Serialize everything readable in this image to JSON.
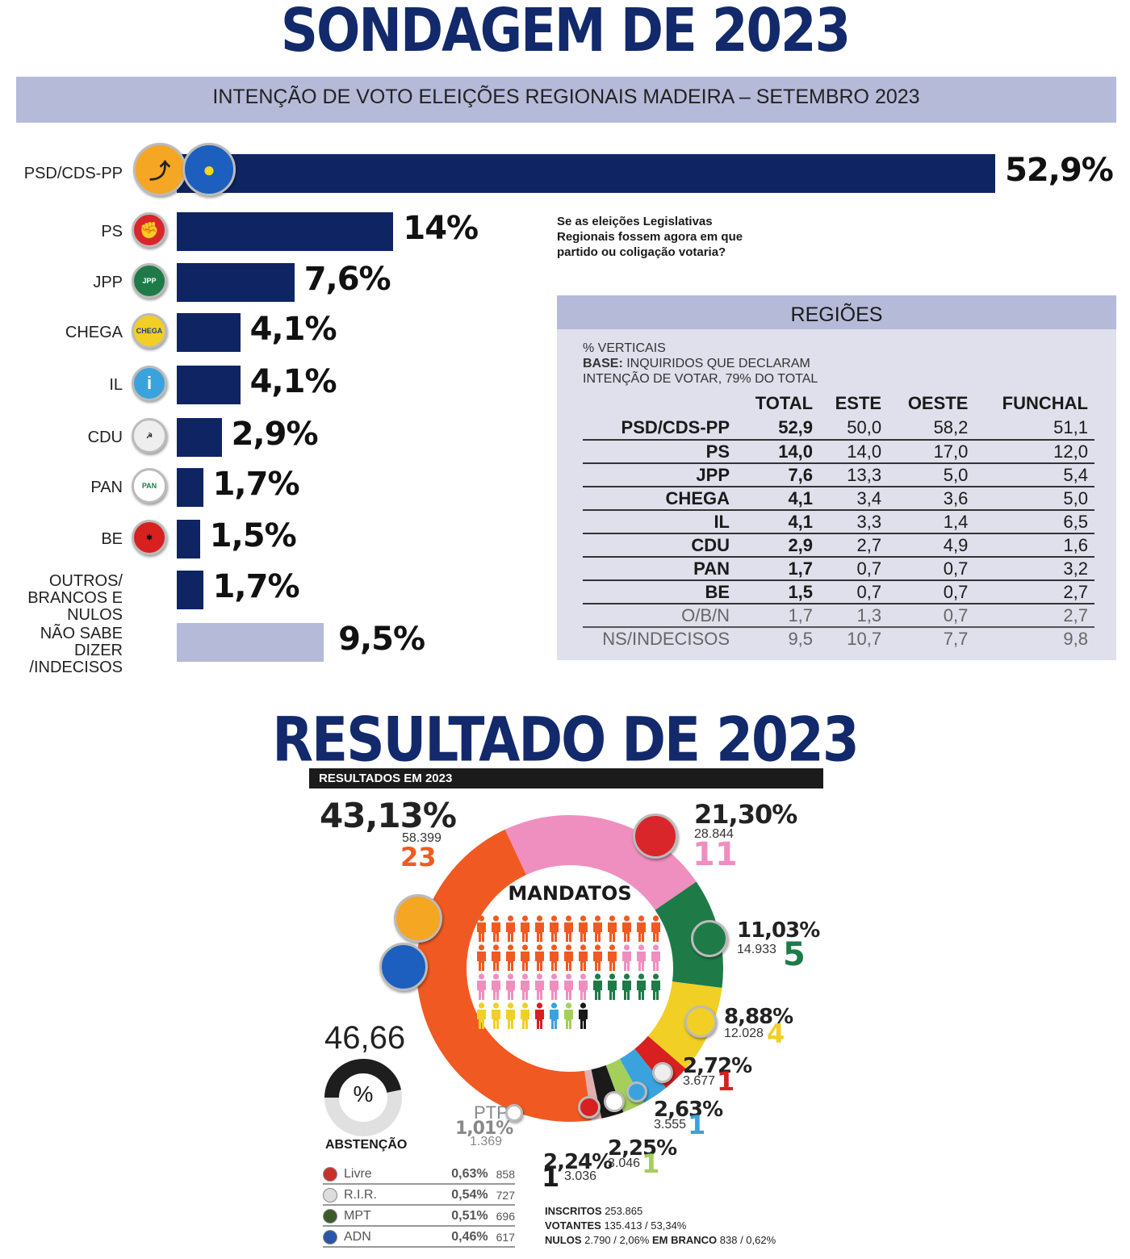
{
  "title_top": "SONDAGEM DE 2023",
  "subtitle": "INTENÇÃO DE VOTO ELEIÇÕES REGIONAIS MADEIRA – SETEMBRO 2023",
  "question": "Se as eleições Legislativas Regionais fossem agora em que partido ou coligação votaria?",
  "regions_title": "REGIÕES",
  "notes": {
    "line1": "% VERTICAIS",
    "base_label": "BASE:",
    "base_text": "INQUIRIDOS QUE DECLARAM",
    "line3": "INTENÇÃO DE VOTAR, 79% DO TOTAL"
  },
  "title_bottom": "RESULTADO DE 2023",
  "results_header": "RESULTADOS EM 2023",
  "mandatos_label": "MANDATOS",
  "abstention": {
    "value": "46,66",
    "symbol": "%",
    "label": "ABSTENÇÃO",
    "fraction": 0.4666
  },
  "footer": {
    "inscritos_label": "INSCRITOS",
    "inscritos": "253.865",
    "votantes_label": "VOTANTES",
    "votantes": "135.413 / 53,34%",
    "nulos_label": "NULOS",
    "nulos": "2.790 / 2,06%",
    "branco_label": "EM BRANCO",
    "branco": "838 / 0,62%"
  },
  "colors": {
    "navy": "#0f2463",
    "light_bar": "#b6bad9",
    "psd": "#f05a22",
    "ps": "#ef8fbf",
    "jpp": "#1e7b48",
    "chega": "#f2cf25",
    "cdu": "#d7201f",
    "il": "#3aa3dd",
    "pan": "#a5cf5b",
    "be": "#1a1a1a",
    "ptp": "#e2b0ae"
  },
  "chart_data": [
    {
      "type": "bar",
      "orientation": "horizontal",
      "title": "INTENÇÃO DE VOTO ELEIÇÕES REGIONAIS MADEIRA – SETEMBRO 2023",
      "categories": [
        "PSD/CDS-PP",
        "PS",
        "JPP",
        "CHEGA",
        "IL",
        "CDU",
        "PAN",
        "BE",
        "OUTROS/ BRANCOS E NULOS",
        "NÃO SABE DIZER /INDECISOS"
      ],
      "values": [
        52.9,
        14,
        7.6,
        4.1,
        4.1,
        2.9,
        1.7,
        1.5,
        1.7,
        9.5
      ],
      "labels": [
        "52,9%",
        "14%",
        "7,6%",
        "4,1%",
        "4,1%",
        "2,9%",
        "1,7%",
        "1,5%",
        "1,7%",
        "9,5%"
      ],
      "label_lines": [
        [
          "PSD/CDS-PP"
        ],
        [
          "PS"
        ],
        [
          "JPP"
        ],
        [
          "CHEGA"
        ],
        [
          "IL"
        ],
        [
          "CDU"
        ],
        [
          "PAN"
        ],
        [
          "BE"
        ],
        [
          "OUTROS/",
          "BRANCOS E NULOS"
        ],
        [
          "NÃO SABE DIZER",
          "/INDECISOS"
        ]
      ],
      "bar_colors": [
        "#0f2463",
        "#0f2463",
        "#0f2463",
        "#0f2463",
        "#0f2463",
        "#0f2463",
        "#0f2463",
        "#0f2463",
        "#0f2463",
        "#b6bad9"
      ]
    },
    {
      "type": "table",
      "title": "REGIÕES",
      "columns": [
        "",
        "TOTAL",
        "ESTE",
        "OESTE",
        "FUNCHAL"
      ],
      "rows": [
        [
          "PSD/CDS-PP",
          "52,9",
          "50,0",
          "58,2",
          "51,1"
        ],
        [
          "PS",
          "14,0",
          "14,0",
          "17,0",
          "12,0"
        ],
        [
          "JPP",
          "7,6",
          "13,3",
          "5,0",
          "5,4"
        ],
        [
          "CHEGA",
          "4,1",
          "3,4",
          "3,6",
          "5,0"
        ],
        [
          "IL",
          "4,1",
          "3,3",
          "1,4",
          "6,5"
        ],
        [
          "CDU",
          "2,9",
          "2,7",
          "4,9",
          "1,6"
        ],
        [
          "PAN",
          "1,7",
          "0,7",
          "0,7",
          "3,2"
        ],
        [
          "BE",
          "1,5",
          "0,7",
          "0,7",
          "2,7"
        ],
        [
          "O/B/N",
          "1,7",
          "1,3",
          "0,7",
          "2,7"
        ],
        [
          "NS/INDECISOS",
          "9,5",
          "10,7",
          "7,7",
          "9,8"
        ]
      ]
    },
    {
      "type": "pie",
      "title": "RESULTADOS EM 2023",
      "slices": [
        {
          "party": "PS",
          "pct": 21.3,
          "pct_label": "21,30%",
          "votes": "28.844",
          "seats": "11",
          "color": "#ef8fbf"
        },
        {
          "party": "JPP",
          "pct": 11.03,
          "pct_label": "11,03%",
          "votes": "14.933",
          "seats": "5",
          "color": "#1e7b48"
        },
        {
          "party": "CHEGA",
          "pct": 8.88,
          "pct_label": "8,88%",
          "votes": "12.028",
          "seats": "4",
          "color": "#f2cf25"
        },
        {
          "party": "CDU",
          "pct": 2.72,
          "pct_label": "2,72%",
          "votes": "3.677",
          "seats": "1",
          "color": "#d7201f"
        },
        {
          "party": "IL",
          "pct": 2.63,
          "pct_label": "2,63%",
          "votes": "3.555",
          "seats": "1",
          "color": "#3aa3dd"
        },
        {
          "party": "PAN",
          "pct": 2.25,
          "pct_label": "2,25%",
          "votes": "3.046",
          "seats": "1",
          "color": "#a5cf5b"
        },
        {
          "party": "BE",
          "pct": 2.24,
          "pct_label": "2,24%",
          "votes": "3.036",
          "seats": "1",
          "color": "#1a1a1a"
        },
        {
          "party": "PTP",
          "pct": 1.01,
          "pct_label": "1,01%",
          "votes": "1.369",
          "seats": "0",
          "color": "#e2b0ae"
        },
        {
          "party": "PSD/CDS-PP",
          "pct": 43.13,
          "pct_label": "43,13%",
          "votes": "58.399",
          "seats": "23",
          "color": "#f05a22"
        }
      ],
      "others": [
        {
          "party": "Livre",
          "pct": "0,63%",
          "votes": "858"
        },
        {
          "party": "R.I.R.",
          "pct": "0,54%",
          "votes": "727"
        },
        {
          "party": "MPT",
          "pct": "0,51%",
          "votes": "696"
        },
        {
          "party": "ADN",
          "pct": "0,46%",
          "votes": "617"
        }
      ]
    }
  ]
}
